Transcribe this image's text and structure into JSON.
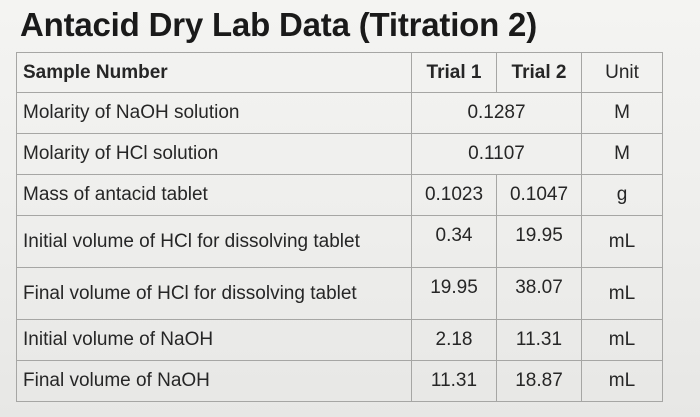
{
  "title": "Antacid Dry Lab Data (Titration 2)",
  "table": {
    "headers": {
      "sample": "Sample Number",
      "trial1": "Trial 1",
      "trial2": "Trial 2",
      "unit": "Unit"
    },
    "rows": [
      {
        "label": "Molarity of NaOH solution",
        "shared": "0.1287",
        "unit": "M"
      },
      {
        "label": "Molarity of HCl solution",
        "shared": "0.1107",
        "unit": "M"
      },
      {
        "label": "Mass of antacid tablet",
        "trial1": "0.1023",
        "trial2": "0.1047",
        "unit": "g"
      },
      {
        "label": "Initial volume of HCl for dissolving tablet",
        "trial1": "0.34",
        "trial2": "19.95",
        "unit": "mL"
      },
      {
        "label": "Final volume of HCl for dissolving tablet",
        "trial1": "19.95",
        "trial2": "38.07",
        "unit": "mL"
      },
      {
        "label": "Initial volume of NaOH",
        "trial1": "2.18",
        "trial2": "11.31",
        "unit": "mL"
      },
      {
        "label": "Final volume of NaOH",
        "trial1": "11.31",
        "trial2": "18.87",
        "unit": "mL"
      }
    ]
  }
}
